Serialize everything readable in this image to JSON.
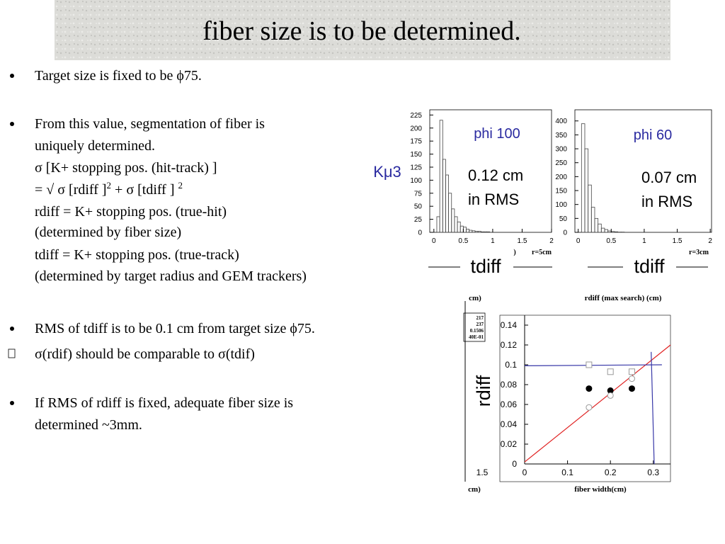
{
  "slide": {
    "title": "fiber size is to be determined.",
    "bullets": [
      {
        "lines": [
          "Target size is fixed to be ϕ75."
        ]
      },
      {
        "lines": [
          "From this value, segmentation of fiber is",
          "uniquely determined.",
          "σ [K+ stopping pos. (hit-track) ]",
          [
            "= √ σ [rdiff ]",
            "2",
            " + σ [tdiff ] ",
            "2"
          ],
          "rdiff = K+ stopping pos. (true-hit)",
          "(determined by fiber size)",
          "tdiff = K+ stopping pos. (true-track)",
          "(determined by target radius and GEM trackers)"
        ]
      },
      {
        "lines": [
          "RMS of tdiff  is to be 0.1 cm from target size ϕ75."
        ]
      },
      {
        "lines": [
          "σ(rdif) should be comparable to σ(tdif)"
        ]
      },
      {
        "lines": [
          "If RMS of rdiff  is fixed, adequate fiber size is",
          "determined ~3mm."
        ]
      }
    ],
    "annotations": {
      "kmu3": "Kμ3",
      "paren": ")",
      "cm_top": "cm)",
      "max_search": "rdiff (max search) (cm)",
      "stat1": "217",
      "stat2": "237",
      "stat3": "0.1506",
      "stat4": "40E-01",
      "left_tick": "1.5",
      "cm_bottom": "cm)"
    }
  },
  "chart_data": [
    {
      "type": "histogram",
      "title": "phi 100",
      "note": [
        "0.12 cm",
        "in RMS"
      ],
      "xlabel": "tdiff",
      "corner": "r=5cm",
      "color": "#444444",
      "bins": [
        0,
        0.05,
        0.1,
        0.15,
        0.2,
        0.25,
        0.3,
        0.35,
        0.4,
        0.45,
        0.5,
        0.55,
        0.6,
        0.65,
        0.7,
        0.75,
        0.8,
        0.85,
        0.9,
        0.95,
        1
      ],
      "counts": [
        0,
        30,
        215,
        140,
        110,
        75,
        45,
        30,
        20,
        12,
        10,
        6,
        4,
        3,
        2,
        2,
        1,
        1,
        1,
        0
      ],
      "xlim": [
        -0.07,
        2
      ],
      "xticks": [
        0,
        0.5,
        1,
        1.5,
        2
      ],
      "ylim": [
        0,
        235
      ],
      "yticks": [
        0,
        25,
        50,
        75,
        100,
        125,
        150,
        175,
        200,
        225
      ]
    },
    {
      "type": "histogram",
      "title": "phi 60",
      "note": [
        "0.07 cm",
        "in RMS"
      ],
      "xlabel": "tdiff",
      "corner": "r=3cm",
      "color": "#444444",
      "bins": [
        0,
        0.05,
        0.1,
        0.15,
        0.2,
        0.25,
        0.3,
        0.35,
        0.4,
        0.45,
        0.5,
        0.55,
        0.6,
        0.65,
        0.7,
        0.75,
        0.8,
        0.85,
        0.9,
        0.95,
        1
      ],
      "counts": [
        0,
        390,
        300,
        170,
        90,
        50,
        30,
        15,
        10,
        5,
        3,
        2,
        1,
        1,
        0,
        0,
        0,
        0,
        0,
        0
      ],
      "xlim": [
        -0.05,
        2.02
      ],
      "xticks": [
        0,
        0.5,
        1,
        1.5,
        2
      ],
      "ylim": [
        0,
        440
      ],
      "yticks": [
        0,
        50,
        100,
        150,
        200,
        250,
        300,
        350,
        400
      ]
    },
    {
      "type": "scatter",
      "ylabel": "rdiff",
      "xlabel": "fiber width(cm)",
      "xlim": [
        0,
        0.34
      ],
      "xticks": [
        0,
        0.1,
        0.2,
        0.3
      ],
      "ylim": [
        0,
        0.15
      ],
      "yticks": [
        0,
        0.02,
        0.04,
        0.06,
        0.08,
        0.1,
        0.12,
        0.14
      ],
      "series": [
        {
          "marker": "filled-circle",
          "color": "#000000",
          "x": [
            0.15,
            0.2,
            0.25
          ],
          "values": [
            0.076,
            0.074,
            0.076
          ]
        },
        {
          "marker": "open-circle",
          "color": "#999999",
          "x": [
            0.15,
            0.2,
            0.25
          ],
          "values": [
            0.057,
            0.069,
            0.086
          ]
        },
        {
          "marker": "open-square",
          "color": "#999999",
          "x": [
            0.15,
            0.2,
            0.25
          ],
          "values": [
            0.1,
            0.093,
            0.093
          ]
        }
      ],
      "lines": [
        {
          "color": "#e02020",
          "x": [
            0,
            0.34
          ],
          "values": [
            0.002,
            0.12
          ]
        },
        {
          "color": "#3838a8",
          "x": [
            0,
            0.32
          ],
          "values": [
            0.099,
            0.1
          ]
        },
        {
          "color": "#3838a8",
          "x": [
            0.295,
            0.302
          ],
          "values": [
            0.113,
            0
          ]
        }
      ]
    }
  ]
}
